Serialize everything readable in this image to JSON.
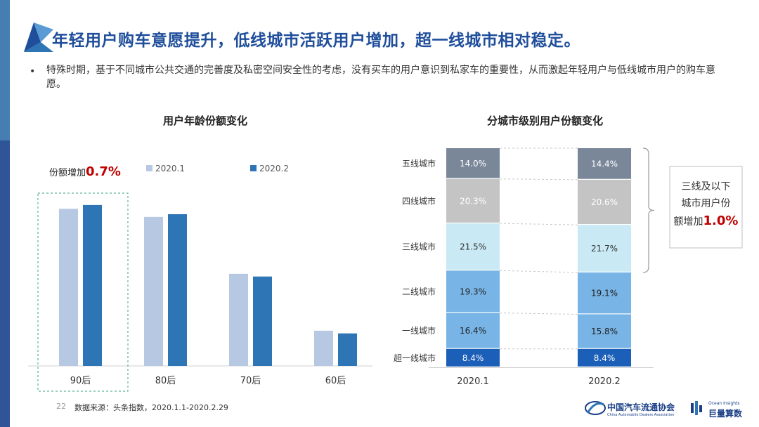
{
  "header": {
    "title": "年轻用户购车意愿提升，低线城市活跃用户增加，超一线城市相对稳定。",
    "bullet": "特殊时期，基于不同城市公共交通的完善度及私密空间安全性的考虑，没有买车的用户意识到私家车的重要性，从而激起年轻用户与低线城市用户的购车意愿。"
  },
  "chart_data": [
    {
      "type": "bar",
      "title": "用户年龄份额变化",
      "categories": [
        "90后",
        "80后",
        "70后",
        "60后"
      ],
      "series": [
        {
          "name": "2020.1",
          "values": [
            29.0,
            27.5,
            17.0,
            6.5
          ]
        },
        {
          "name": "2020.2",
          "values": [
            29.7,
            28.0,
            16.5,
            6.0
          ]
        }
      ],
      "ylim": [
        0,
        35
      ],
      "colors": [
        "#b7c9e2",
        "#2e75b6"
      ],
      "annotation": {
        "label": "份额增加",
        "value": "0.7%",
        "target": "90后"
      }
    },
    {
      "type": "bar",
      "stacked": true,
      "title": "分城市级别用户份额变化",
      "categories": [
        "2020.1",
        "2020.2"
      ],
      "series": [
        {
          "name": "超一线城市",
          "values": [
            8.4,
            8.4
          ],
          "labels": [
            "8.4%",
            "8.4%"
          ],
          "color": "#1b5fb8"
        },
        {
          "name": "一线城市",
          "values": [
            16.4,
            15.8
          ],
          "labels": [
            "16.4%",
            "15.8%"
          ],
          "color": "#78b4e6"
        },
        {
          "name": "二线城市",
          "values": [
            19.3,
            19.1
          ],
          "labels": [
            "19.3%",
            "19.1%"
          ],
          "color": "#78b4e6"
        },
        {
          "name": "三线城市",
          "values": [
            21.5,
            21.7
          ],
          "labels": [
            "21.5%",
            "21.7%"
          ],
          "color": "#c9eaf4"
        },
        {
          "name": "四线城市",
          "values": [
            20.3,
            20.6
          ],
          "labels": [
            "20.3%",
            "20.6%"
          ],
          "color": "#c4c4c4"
        },
        {
          "name": "五线城市",
          "values": [
            14.0,
            14.4
          ],
          "labels": [
            "14.0%",
            "14.4%"
          ],
          "color": "#7a8799"
        }
      ],
      "callout": {
        "line1": "三线及以下",
        "line2": "城市用户份",
        "line3_prefix": "额增加",
        "value": "1.0%"
      }
    }
  ],
  "footer": {
    "page_number": "22",
    "source": "数据来源：头条指数，2020.1.1-2020.2.29",
    "logo1_cn": "中国汽车流通协会",
    "logo1_en": "China Automobile Dealers Association",
    "logo2_en": "Ocean Insights",
    "logo2_cn": "巨量算数"
  }
}
